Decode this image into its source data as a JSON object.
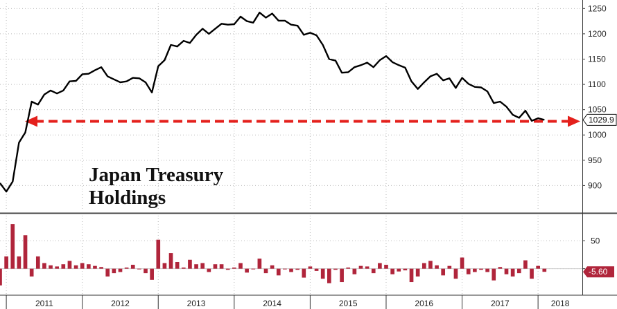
{
  "chart_data": [
    {
      "type": "line",
      "title": [
        "Japan Treasury",
        "Holdings"
      ],
      "ylim": [
        850,
        1260
      ],
      "yticks": [
        900,
        950,
        1000,
        1050,
        1100,
        1150,
        1200,
        1250
      ],
      "series_color": "#000000",
      "last_value_label": "1029.9",
      "reference_line": {
        "value": 1027,
        "color": "#e4201c",
        "style": "dashed-arrow"
      },
      "x_range": [
        2010.917,
        2018.583
      ],
      "x_labels": [
        {
          "label": "2011",
          "year": 2011
        },
        {
          "label": "2012",
          "year": 2012
        },
        {
          "label": "2013",
          "year": 2013
        },
        {
          "label": "2014",
          "year": 2014
        },
        {
          "label": "2015",
          "year": 2015
        },
        {
          "label": "2016",
          "year": 2016
        },
        {
          "label": "2017",
          "year": 2017
        },
        {
          "label": "2018",
          "year": 2018
        }
      ],
      "start_year": 2010.917,
      "step_months": 1,
      "values": [
        905,
        888,
        908,
        985,
        1005,
        1066,
        1060,
        1080,
        1088,
        1082,
        1088,
        1106,
        1107,
        1120,
        1121,
        1128,
        1134,
        1116,
        1110,
        1104,
        1106,
        1113,
        1112,
        1104,
        1084,
        1136,
        1148,
        1178,
        1175,
        1186,
        1182,
        1198,
        1210,
        1200,
        1210,
        1220,
        1218,
        1219,
        1234,
        1225,
        1222,
        1242,
        1232,
        1240,
        1226,
        1226,
        1218,
        1216,
        1198,
        1202,
        1197,
        1178,
        1150,
        1147,
        1123,
        1124,
        1134,
        1138,
        1143,
        1134,
        1148,
        1156,
        1144,
        1138,
        1133,
        1106,
        1091,
        1104,
        1116,
        1121,
        1108,
        1112,
        1093,
        1113,
        1101,
        1095,
        1094,
        1086,
        1063,
        1066,
        1056,
        1040,
        1034,
        1048,
        1028,
        1033,
        1029.9
      ]
    },
    {
      "type": "bar",
      "ylim": [
        -45,
        95
      ],
      "yticks": [
        0,
        50
      ],
      "bar_color": "#b0253b",
      "last_value_label": "-5.60",
      "values": [
        -30,
        22,
        80,
        22,
        60,
        -14,
        22,
        10,
        6,
        4,
        8,
        14,
        6,
        10,
        8,
        5,
        3,
        -14,
        -8,
        -6,
        2,
        7,
        -1,
        -8,
        -20,
        52,
        10,
        28,
        12,
        2,
        16,
        8,
        10,
        -6,
        8,
        8,
        -2,
        2,
        10,
        -7,
        -1,
        18,
        -8,
        6,
        -12,
        0,
        -6,
        -2,
        -16,
        4,
        -4,
        -18,
        -26,
        -2,
        -24,
        2,
        -10,
        5,
        4,
        -8,
        10,
        7,
        -10,
        -5,
        -3,
        -24,
        -14,
        10,
        14,
        6,
        -12,
        5,
        -18,
        20,
        -10,
        -6,
        -2,
        -6,
        -21,
        3,
        -10,
        -14,
        -8,
        15,
        -18,
        5,
        -5.6
      ]
    }
  ]
}
